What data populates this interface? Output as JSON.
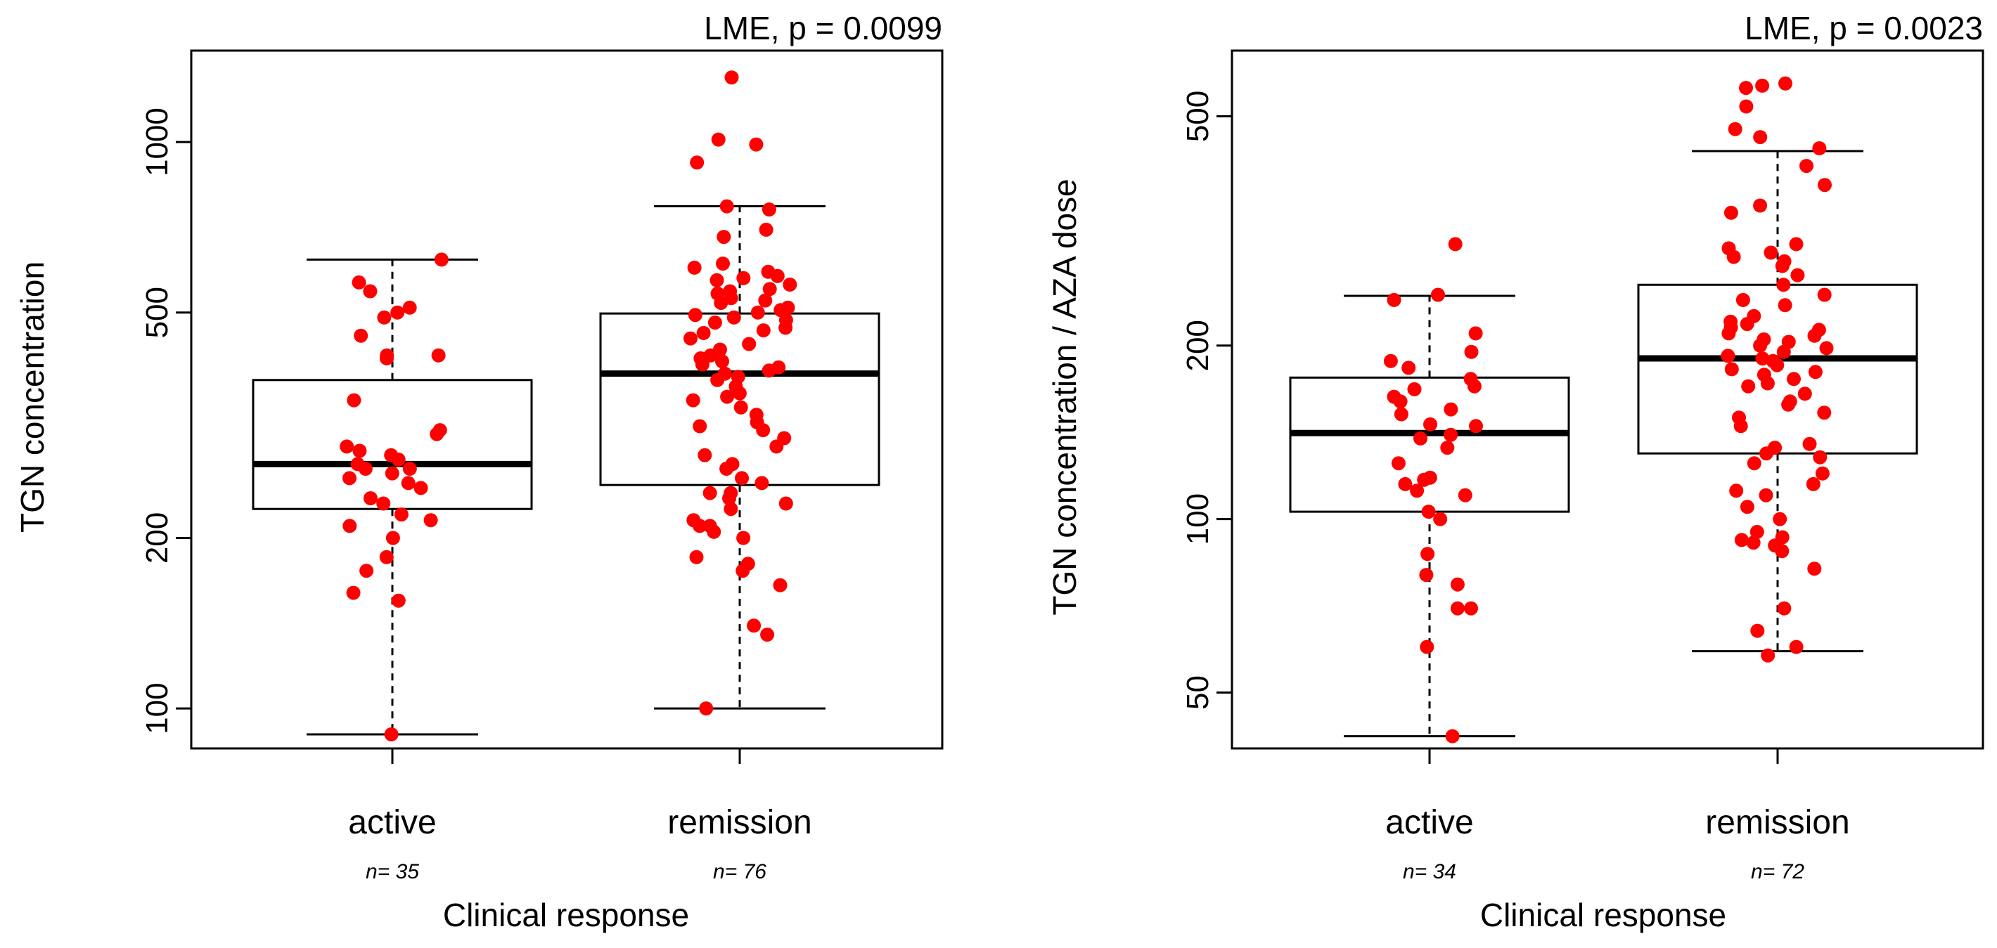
{
  "colors": {
    "points": "#ff0000",
    "box": "#000000",
    "background": "#ffffff"
  },
  "chart_data": [
    {
      "type": "boxplot",
      "scale": "log",
      "annotation": "LME, p = 0.0099",
      "xlabel": "Clinical response",
      "ylabel": "TGN concentration",
      "ylim": [
        85,
        1450
      ],
      "yticks": [
        100,
        200,
        500,
        1000
      ],
      "ytick_labels": [
        "100",
        "200",
        "500",
        "1000"
      ],
      "groups": [
        {
          "label": "active",
          "n_label": "n= 35",
          "whisker_low": 90,
          "q1": 225,
          "median": 270,
          "q3": 380,
          "whisker_high": 620,
          "points": [
            90,
            155,
            160,
            175,
            185,
            200,
            210,
            215,
            220,
            230,
            235,
            245,
            250,
            255,
            260,
            265,
            265,
            270,
            275,
            280,
            285,
            290,
            305,
            310,
            350,
            415,
            420,
            455,
            490,
            500,
            510,
            545,
            565,
            620,
            420
          ]
        },
        {
          "label": "remission",
          "n_label": "n= 76",
          "whisker_low": 100,
          "q1": 248,
          "median": 390,
          "q3": 498,
          "whisker_high": 770,
          "points": [
            100,
            135,
            140,
            165,
            175,
            180,
            185,
            200,
            205,
            210,
            210,
            215,
            225,
            230,
            235,
            240,
            240,
            250,
            255,
            265,
            270,
            280,
            290,
            300,
            310,
            315,
            320,
            330,
            340,
            350,
            355,
            360,
            370,
            380,
            385,
            390,
            395,
            400,
            405,
            410,
            415,
            420,
            430,
            440,
            450,
            460,
            465,
            470,
            480,
            485,
            490,
            495,
            500,
            505,
            510,
            520,
            525,
            530,
            540,
            545,
            550,
            560,
            570,
            575,
            580,
            590,
            600,
            610,
            680,
            700,
            760,
            770,
            920,
            990,
            1010,
            1300
          ]
        }
      ]
    },
    {
      "type": "boxplot",
      "scale": "log",
      "annotation": "LME, p = 0.0023",
      "xlabel": "Clinical response",
      "ylabel": "TGN concentration / AZA dose",
      "ylim": [
        40,
        650
      ],
      "yticks": [
        50,
        100,
        200,
        500
      ],
      "ytick_labels": [
        "50",
        "100",
        "200",
        "500"
      ],
      "groups": [
        {
          "label": "active",
          "n_label": "n= 34",
          "whisker_low": 42,
          "q1": 103,
          "median": 141,
          "q3": 176,
          "whisker_high": 244,
          "points": [
            42,
            60,
            70,
            70,
            77,
            80,
            87,
            100,
            103,
            110,
            112,
            115,
            117,
            118,
            125,
            133,
            138,
            140,
            145,
            146,
            152,
            155,
            160,
            163,
            168,
            170,
            175,
            183,
            188,
            195,
            210,
            240,
            245,
            300
          ]
        },
        {
          "label": "remission",
          "n_label": "n= 72",
          "whisker_low": 59,
          "q1": 130,
          "median": 190,
          "q3": 255,
          "whisker_high": 435,
          "points": [
            58,
            60,
            64,
            70,
            82,
            88,
            90,
            91,
            92,
            93,
            95,
            100,
            105,
            110,
            112,
            115,
            120,
            125,
            128,
            130,
            133,
            135,
            145,
            150,
            153,
            158,
            160,
            165,
            170,
            172,
            175,
            178,
            180,
            182,
            185,
            188,
            190,
            192,
            195,
            198,
            200,
            203,
            205,
            208,
            210,
            213,
            215,
            218,
            220,
            225,
            235,
            240,
            245,
            255,
            265,
            275,
            280,
            285,
            290,
            295,
            300,
            340,
            350,
            380,
            410,
            440,
            460,
            475,
            520,
            560,
            565,
            570
          ]
        }
      ]
    }
  ]
}
